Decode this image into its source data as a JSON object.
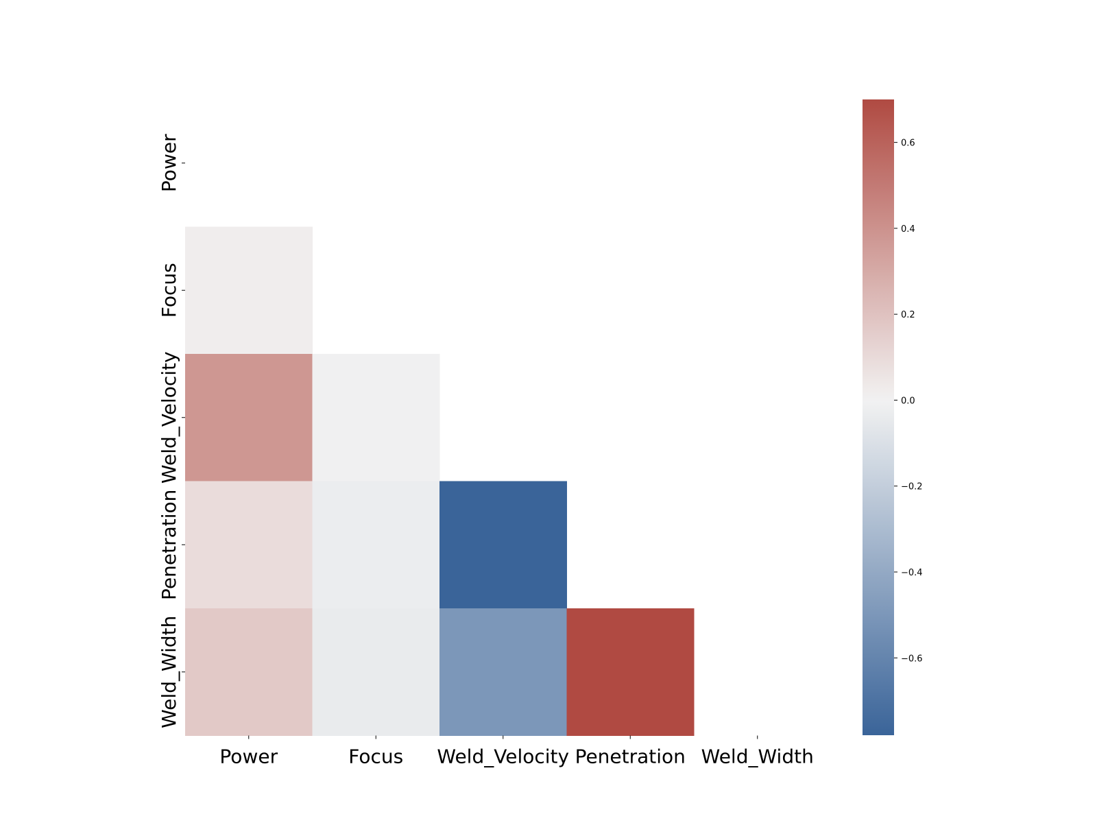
{
  "chart_data": {
    "type": "heatmap",
    "title": "",
    "xlabel": "",
    "ylabel": "",
    "variables": [
      "Power",
      "Focus",
      "Weld_Velocity",
      "Penetration",
      "Weld_Width"
    ],
    "mask": "upper-triangle-including-diagonal",
    "cells": [
      {
        "row": "Focus",
        "col": "Power",
        "value": 0.02
      },
      {
        "row": "Weld_Velocity",
        "col": "Power",
        "value": 0.38
      },
      {
        "row": "Weld_Velocity",
        "col": "Focus",
        "value": -0.01
      },
      {
        "row": "Penetration",
        "col": "Power",
        "value": 0.09
      },
      {
        "row": "Penetration",
        "col": "Focus",
        "value": -0.03
      },
      {
        "row": "Penetration",
        "col": "Weld_Velocity",
        "value": -0.78
      },
      {
        "row": "Weld_Width",
        "col": "Power",
        "value": 0.17
      },
      {
        "row": "Weld_Width",
        "col": "Focus",
        "value": -0.04
      },
      {
        "row": "Weld_Width",
        "col": "Weld_Velocity",
        "value": -0.5
      },
      {
        "row": "Weld_Width",
        "col": "Penetration",
        "value": 0.7
      }
    ],
    "colorbar": {
      "vmin": -0.78,
      "vmax": 0.7,
      "ticks": [
        0.6,
        0.4,
        0.2,
        0.0,
        -0.2,
        -0.4,
        -0.6
      ],
      "tick_labels": [
        "0.6",
        "0.4",
        "0.2",
        "0.0",
        "−0.2",
        "−0.4",
        "−0.6"
      ],
      "placement": "right",
      "colors": {
        "negative": "#3a6499",
        "neutral": "#f2f2f2",
        "positive": "#b04a42"
      }
    },
    "grid": false,
    "legend": "colorbar-right"
  }
}
